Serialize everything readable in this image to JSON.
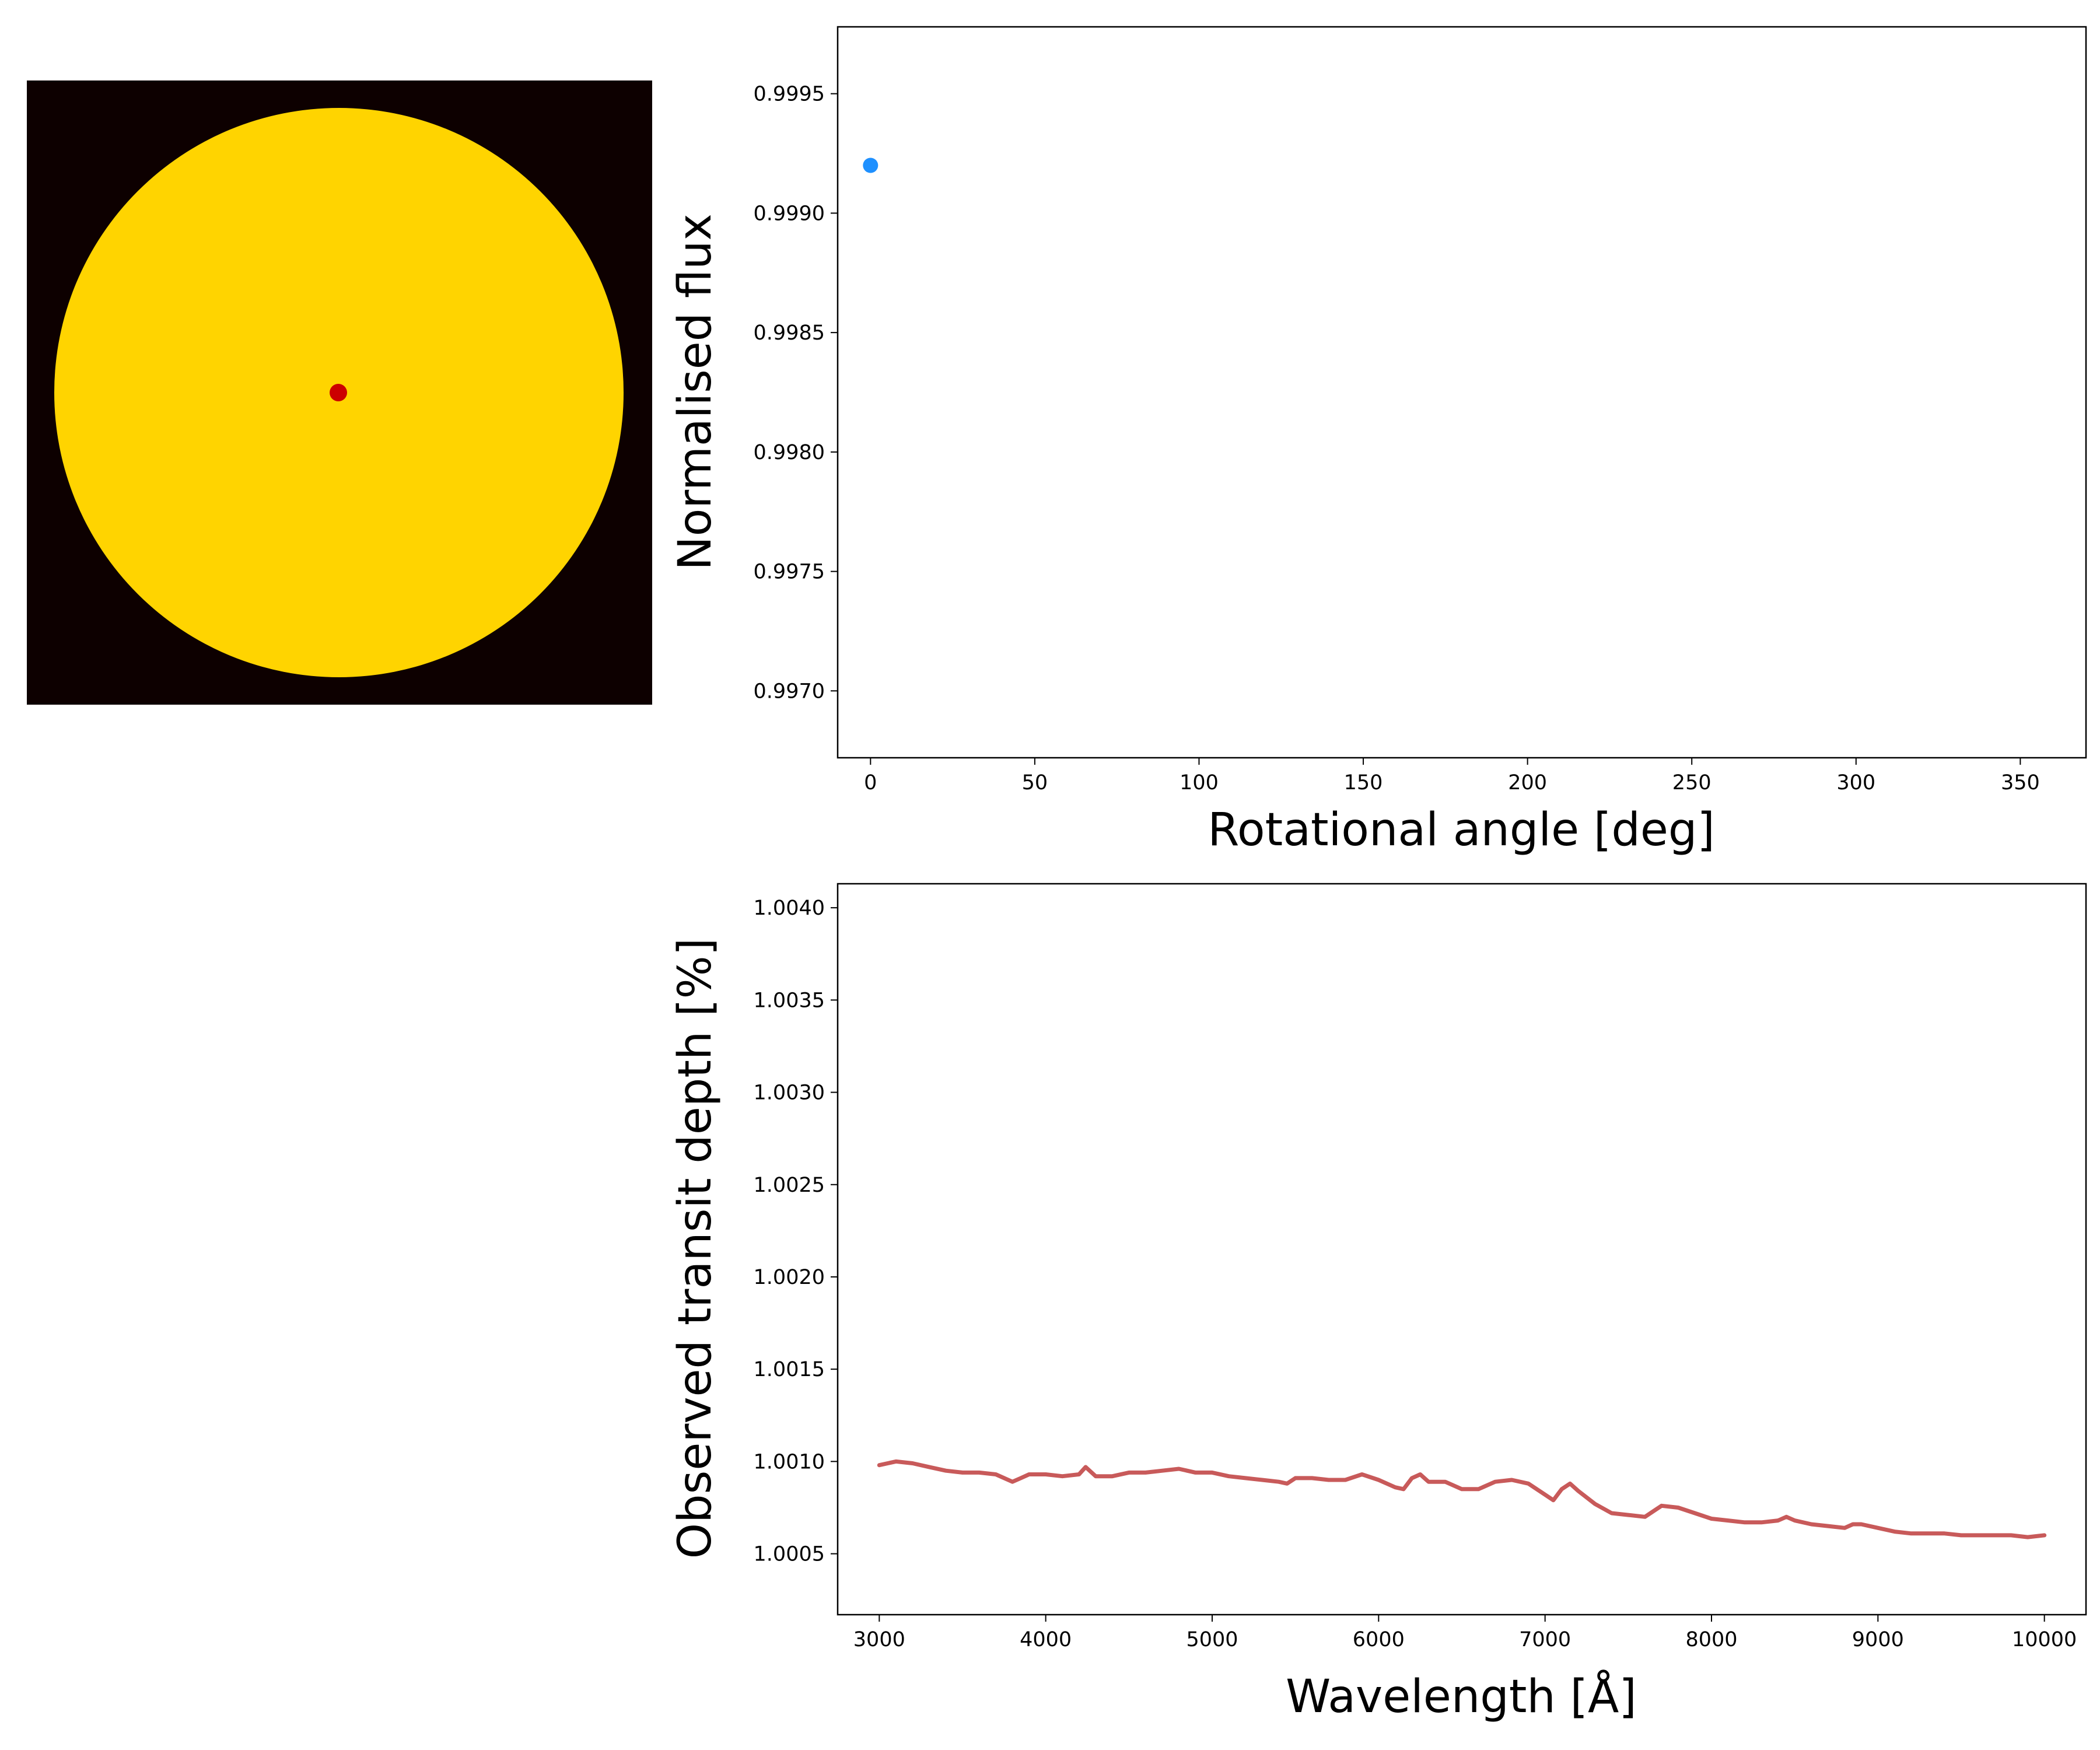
{
  "colors": {
    "background": "#ffffff",
    "star_panel_bg": "#0d0000",
    "star_disk": "#ffd400",
    "planet": "#cc0000",
    "flux_point": "#1e90ff",
    "depth_line": "#c85a5a"
  },
  "panels": {
    "star_image": {
      "type": "image",
      "description": "stellar disk with transiting planet",
      "planet_position": "center"
    }
  },
  "chart_data": [
    {
      "type": "scatter",
      "title": "",
      "xlabel": "Rotational angle [deg]",
      "ylabel": "Normalised flux",
      "xlim": [
        -10,
        370
      ],
      "ylim": [
        0.99672,
        0.99978
      ],
      "xticks": [
        0,
        50,
        100,
        150,
        200,
        250,
        300,
        350
      ],
      "xtick_labels": [
        "0",
        "50",
        "100",
        "150",
        "200",
        "250",
        "300",
        "350"
      ],
      "yticks": [
        0.997,
        0.9975,
        0.998,
        0.9985,
        0.999,
        0.9995
      ],
      "ytick_labels": [
        "0.9970",
        "0.9975",
        "0.9980",
        "0.9985",
        "0.9990",
        "0.9995"
      ],
      "grid": false,
      "series": [
        {
          "x": [
            0
          ],
          "y": [
            0.9992
          ],
          "color": "#1e90ff"
        }
      ]
    },
    {
      "type": "line",
      "title": "",
      "xlabel": "Wavelength [Å]",
      "ylabel": "Observed transit depth [%]",
      "xlim": [
        2750,
        10250
      ],
      "ylim": [
        1.00017,
        1.00413
      ],
      "xticks": [
        3000,
        4000,
        5000,
        6000,
        7000,
        8000,
        9000,
        10000
      ],
      "xtick_labels": [
        "3000",
        "4000",
        "5000",
        "6000",
        "7000",
        "8000",
        "9000",
        "10000"
      ],
      "yticks": [
        1.0005,
        1.001,
        1.0015,
        1.002,
        1.0025,
        1.003,
        1.0035,
        1.004
      ],
      "ytick_labels": [
        "1.0005",
        "1.0010",
        "1.0015",
        "1.0020",
        "1.0025",
        "1.0030",
        "1.0035",
        "1.0040"
      ],
      "grid": false,
      "series": [
        {
          "color": "#c85a5a",
          "x": [
            3000,
            3100,
            3200,
            3300,
            3400,
            3500,
            3600,
            3700,
            3800,
            3850,
            3900,
            4000,
            4100,
            4200,
            4240,
            4300,
            4400,
            4500,
            4600,
            4700,
            4800,
            4900,
            5000,
            5100,
            5200,
            5300,
            5400,
            5450,
            5500,
            5600,
            5700,
            5800,
            5900,
            6000,
            6100,
            6150,
            6200,
            6250,
            6300,
            6400,
            6500,
            6600,
            6700,
            6800,
            6900,
            7000,
            7050,
            7100,
            7150,
            7200,
            7300,
            7400,
            7500,
            7600,
            7650,
            7700,
            7800,
            7900,
            8000,
            8100,
            8200,
            8300,
            8400,
            8450,
            8500,
            8600,
            8700,
            8800,
            8850,
            8900,
            9000,
            9100,
            9200,
            9300,
            9400,
            9500,
            9600,
            9700,
            9800,
            9900,
            10000
          ],
          "y": [
            1.00098,
            1.001,
            1.00099,
            1.00097,
            1.00095,
            1.00094,
            1.00094,
            1.00093,
            1.00089,
            1.00091,
            1.00093,
            1.00093,
            1.00092,
            1.00093,
            1.00097,
            1.00092,
            1.00092,
            1.00094,
            1.00094,
            1.00095,
            1.00096,
            1.00094,
            1.00094,
            1.00092,
            1.00091,
            1.0009,
            1.00089,
            1.00088,
            1.00091,
            1.00091,
            1.0009,
            1.0009,
            1.00093,
            1.0009,
            1.00086,
            1.00085,
            1.00091,
            1.00093,
            1.00089,
            1.00089,
            1.00085,
            1.00085,
            1.00089,
            1.0009,
            1.00088,
            1.00082,
            1.00079,
            1.00085,
            1.00088,
            1.00084,
            1.00077,
            1.00072,
            1.00071,
            1.0007,
            1.00073,
            1.00076,
            1.00075,
            1.00072,
            1.00069,
            1.00068,
            1.00067,
            1.00067,
            1.00068,
            1.0007,
            1.00068,
            1.00066,
            1.00065,
            1.00064,
            1.00066,
            1.00066,
            1.00064,
            1.00062,
            1.00061,
            1.00061,
            1.00061,
            1.0006,
            1.0006,
            1.0006,
            1.0006,
            1.00059,
            1.0006
          ]
        }
      ]
    }
  ]
}
